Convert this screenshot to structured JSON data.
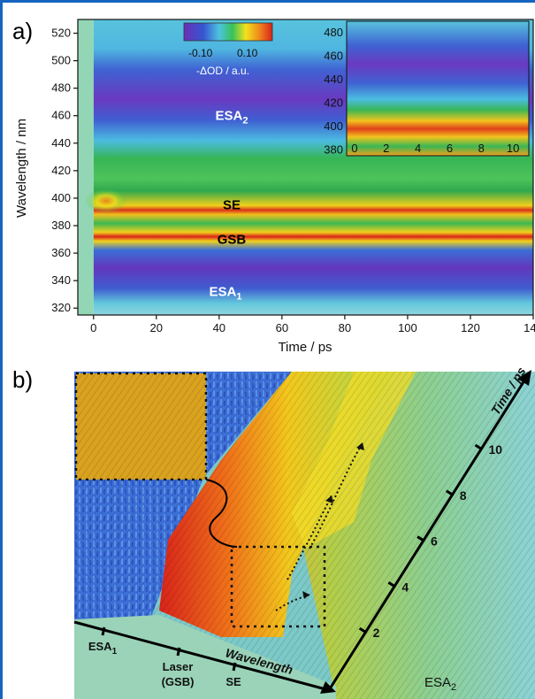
{
  "panel_a": {
    "label": "a)",
    "chart_data": {
      "type": "heatmap",
      "xlabel": "Time / ps",
      "ylabel": "Wavelength / nm",
      "xlim": [
        -5,
        140
      ],
      "ylim": [
        315,
        530
      ],
      "x_ticks": [
        0,
        20,
        40,
        60,
        80,
        100,
        120,
        140
      ],
      "y_ticks": [
        320,
        340,
        360,
        380,
        400,
        420,
        440,
        460,
        480,
        500,
        520
      ],
      "colorbar": {
        "label": "-ΔOD / a.u.",
        "ticks": [
          "-0.10",
          "0.10"
        ],
        "range": [
          -0.15,
          0.15
        ],
        "ticks_right": [
          "0.10"
        ]
      },
      "bands": [
        {
          "name": "ESA2",
          "label": "ESA",
          "sub": "2",
          "center_nm": 460,
          "value": -0.12,
          "label_color": "#ffffff"
        },
        {
          "name": "SE",
          "label": "SE",
          "sub": "",
          "center_nm": 395,
          "value": 0.02,
          "label_color": "#000000"
        },
        {
          "name": "GSB",
          "label": "GSB",
          "sub": "",
          "center_nm": 370,
          "value": 0.11,
          "label_color": "#000000"
        },
        {
          "name": "ESA1",
          "label": "ESA",
          "sub": "1",
          "center_nm": 332,
          "value": -0.13,
          "label_color": "#ffffff"
        }
      ],
      "inset": {
        "xlim": [
          -0.5,
          11
        ],
        "ylim": [
          375,
          490
        ],
        "x_ticks": [
          0,
          2,
          4,
          6,
          8,
          10
        ],
        "y_ticks": [
          380,
          400,
          420,
          440,
          460,
          480
        ]
      }
    }
  },
  "panel_b": {
    "label": "b)",
    "chart_data": {
      "type": "surface",
      "wavelength_label": "Wavelength",
      "time_label": "Time / ps",
      "time_ticks": [
        2,
        4,
        6,
        8,
        10
      ],
      "wavelength_markers": [
        {
          "name": "ESA1",
          "text": "ESA",
          "sub": "1"
        },
        {
          "name": "Laser",
          "text": "Laser",
          "text2": "(GSB)"
        },
        {
          "name": "SE",
          "text": "SE"
        }
      ],
      "region_label": {
        "text": "ESA",
        "sub": "2"
      }
    }
  },
  "colors": {
    "frame": "#1565c0",
    "esa": "#5b2fb0",
    "deep_blue": "#3b55cf",
    "cyan": "#57c3dd",
    "green": "#38c257",
    "yellow": "#f2e21c",
    "orange": "#f08a1c",
    "red": "#d8231a"
  }
}
